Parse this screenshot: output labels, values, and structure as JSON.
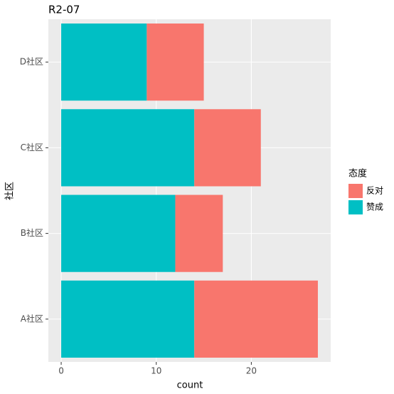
{
  "chart_data": {
    "type": "stacked_bar_horizontal",
    "title": "R2-07",
    "x_label": "count",
    "y_label": "社区",
    "legend_title": "态度",
    "categories": [
      "A社区",
      "B社区",
      "C社区",
      "D社区"
    ],
    "series": [
      {
        "name": "反对",
        "color": "#f8766d",
        "values": [
          13,
          5,
          7,
          6
        ]
      },
      {
        "name": "赞成",
        "color": "#00bfc4",
        "values": [
          14,
          12,
          14,
          9
        ]
      }
    ],
    "xlim": [
      -1.35,
      28.35
    ],
    "xticks": [
      0,
      10,
      20
    ],
    "grid": true,
    "legend": "right"
  }
}
